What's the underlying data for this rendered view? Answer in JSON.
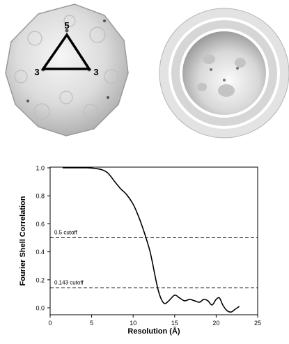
{
  "figure": {
    "map_labels": {
      "vertex_top": "5",
      "vertex_left": "3",
      "vertex_right": "3"
    }
  },
  "chart_data": {
    "type": "line",
    "title": "",
    "xlabel": "Resolution (Å)",
    "ylabel": "Fourier Shell Correlation",
    "xlim": [
      0,
      25
    ],
    "ylim": [
      -0.05,
      1.0
    ],
    "x_ticks": [
      0,
      5,
      10,
      15,
      20,
      25
    ],
    "y_ticks": [
      0.0,
      0.2,
      0.4,
      0.6,
      0.8,
      1.0
    ],
    "x_tick_labels": [
      "0",
      "5",
      "10",
      "15",
      "20",
      "25"
    ],
    "y_tick_labels": [
      "0.0",
      "0.2",
      "0.4",
      "0.6",
      "0.8",
      "1.0"
    ],
    "grid": false,
    "legend": "none",
    "series": [
      {
        "color": "#000000",
        "x": [
          1.5,
          3,
          4.5,
          5.5,
          6.3,
          7,
          7.8,
          8.5,
          9.2,
          10,
          10.6,
          11.1,
          11.6,
          12,
          12.3,
          12.6,
          13,
          13.4,
          13.8,
          14.3,
          15,
          15.6,
          16.2,
          16.8,
          17.4,
          18,
          18.5,
          19,
          19.5,
          20,
          20.4,
          20.8,
          21.3,
          21.8,
          22.3,
          22.8
        ],
        "y": [
          1.0,
          1.0,
          1.0,
          0.995,
          0.985,
          0.96,
          0.9,
          0.85,
          0.81,
          0.74,
          0.66,
          0.58,
          0.49,
          0.41,
          0.33,
          0.24,
          0.13,
          0.06,
          0.03,
          0.05,
          0.09,
          0.07,
          0.05,
          0.06,
          0.05,
          0.04,
          0.06,
          0.05,
          0.02,
          0.06,
          0.07,
          0.02,
          -0.02,
          -0.03,
          -0.01,
          0.01
        ]
      }
    ],
    "reference_lines": [
      {
        "y": 0.5,
        "label": "0.5 cutoff",
        "style": "dashed"
      },
      {
        "y": 0.143,
        "label": "0.143 cutoff",
        "style": "dashed"
      }
    ]
  }
}
